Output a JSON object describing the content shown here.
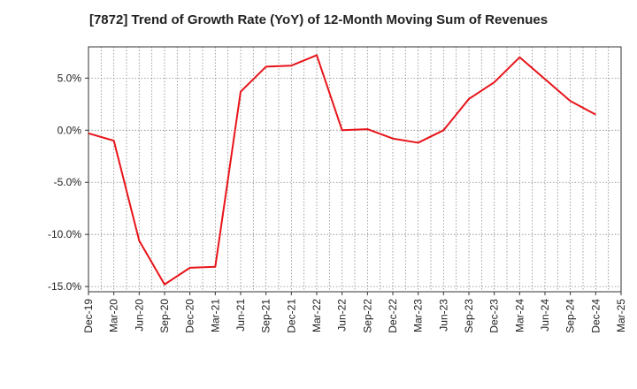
{
  "chart_data": {
    "type": "line",
    "title": "[7872]  Trend of Growth Rate (YoY) of 12-Month Moving Sum of Revenues",
    "xlabel": "",
    "ylabel": "",
    "categories": [
      "Dec-19",
      "Mar-20",
      "Jun-20",
      "Sep-20",
      "Dec-20",
      "Mar-21",
      "Jun-21",
      "Sep-21",
      "Dec-21",
      "Mar-22",
      "Jun-22",
      "Sep-22",
      "Dec-22",
      "Mar-23",
      "Jun-23",
      "Sep-23",
      "Dec-23",
      "Mar-24",
      "Jun-24",
      "Sep-24",
      "Dec-24",
      "Mar-25"
    ],
    "series": [
      {
        "color": "#e8141a",
        "values": [
          -0.3,
          -1.0,
          -10.6,
          -14.8,
          -13.2,
          -13.1,
          3.7,
          6.1,
          6.2,
          7.2,
          0.0,
          0.1,
          -0.8,
          -1.2,
          0.0,
          3.0,
          4.6,
          7.0,
          4.9,
          2.8,
          1.5,
          null
        ]
      }
    ],
    "ylim": [
      -15.5,
      8.0
    ],
    "yticks": [
      5.0,
      0.0,
      -5.0,
      -10.0,
      -15.0
    ],
    "ytick_labels": [
      "5.0%",
      "0.0%",
      "-5.0%",
      "-10.0%",
      "-15.0%"
    ],
    "grid": true,
    "legend": "none"
  }
}
